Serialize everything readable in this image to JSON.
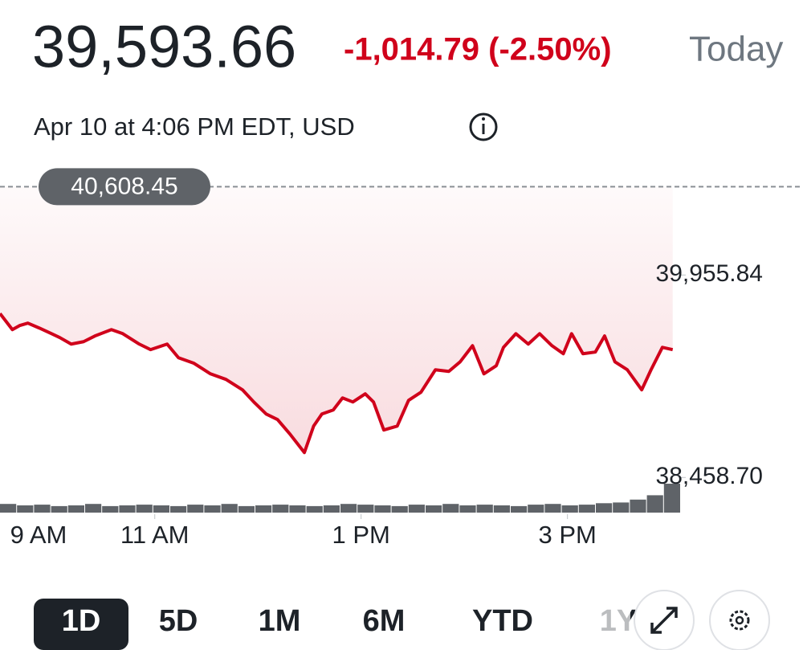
{
  "header": {
    "price": "39,593.66",
    "change": "-1,014.79 (-2.50%)",
    "period": "Today",
    "timestamp": "Apr 10 at 4:06 PM EDT, USD"
  },
  "chart_data": {
    "type": "line",
    "x": [
      9.5,
      9.62,
      9.69,
      9.77,
      9.88,
      10,
      10.08,
      10.19,
      10.31,
      10.42,
      10.58,
      10.69,
      10.85,
      10.96,
      11.12,
      11.23,
      11.38,
      11.54,
      11.69,
      11.85,
      11.96,
      12.08,
      12.19,
      12.31,
      12.45,
      12.54,
      12.62,
      12.73,
      12.82,
      12.92,
      13.04,
      13.12,
      13.22,
      13.35,
      13.46,
      13.58,
      13.72,
      13.85,
      13.96,
      14.08,
      14.19,
      14.31,
      14.38,
      14.5,
      14.62,
      14.73,
      14.85,
      14.96,
      15.04,
      15.15,
      15.27,
      15.36,
      15.46,
      15.58,
      15.72,
      15.81,
      15.92,
      16.02
    ],
    "series": [
      {
        "color": "#d0021b",
        "values": [
          39671,
          39552,
          39582,
          39600,
          39564,
          39522,
          39493,
          39445,
          39463,
          39505,
          39552,
          39522,
          39445,
          39404,
          39445,
          39344,
          39303,
          39225,
          39184,
          39107,
          39017,
          38928,
          38887,
          38780,
          38643,
          38839,
          38928,
          38958,
          39047,
          39017,
          39077,
          39017,
          38810,
          38839,
          39029,
          39089,
          39255,
          39243,
          39314,
          39433,
          39225,
          39285,
          39421,
          39522,
          39445,
          39522,
          39433,
          39374,
          39522,
          39374,
          39386,
          39505,
          39314,
          39255,
          39107,
          39255,
          39421,
          39404
        ]
      }
    ],
    "volume": {
      "color": "#5f6368",
      "values": [
        12,
        10,
        11,
        9,
        10,
        12,
        9,
        10,
        11,
        10,
        9,
        11,
        10,
        12,
        9,
        10,
        11,
        10,
        9,
        10,
        12,
        11,
        10,
        9,
        11,
        10,
        12,
        10,
        11,
        10,
        9,
        11,
        12,
        10,
        11,
        13,
        14,
        18,
        24,
        40
      ],
      "ylim": [
        0,
        50
      ]
    },
    "reference": {
      "value": 40608.45,
      "label": "40,608.45"
    },
    "xlim": [
      9.5,
      16.1
    ],
    "xticks": [
      {
        "value": 9,
        "label": "9 AM"
      },
      {
        "value": 11,
        "label": "11 AM"
      },
      {
        "value": 13,
        "label": "1 PM"
      },
      {
        "value": 15,
        "label": "3 PM"
      }
    ],
    "ylim": [
      38300,
      40700
    ],
    "yticks": [
      {
        "value": 39955.84,
        "label": "39,955.84"
      },
      {
        "value": 38458.7,
        "label": "38,458.70"
      }
    ]
  },
  "ranges": [
    "1D",
    "5D",
    "1M",
    "6M",
    "YTD",
    "1Y"
  ]
}
